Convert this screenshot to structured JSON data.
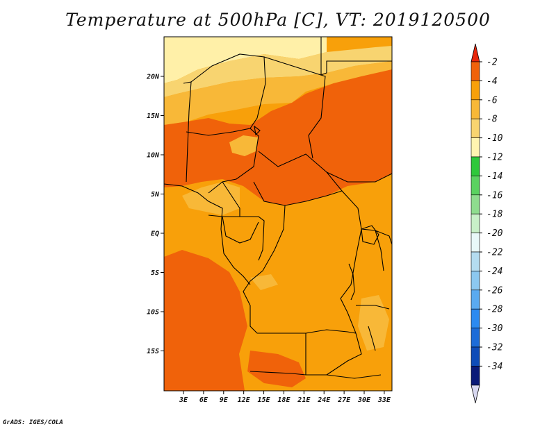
{
  "title": "Temperature at 500hPa [C], VT: 2019120500",
  "credit": "GrADS: IGES/COLA",
  "map": {
    "lat_labels": [
      {
        "label": "20N",
        "lat": 20
      },
      {
        "label": "15N",
        "lat": 15
      },
      {
        "label": "10N",
        "lat": 10
      },
      {
        "label": "5N",
        "lat": 5
      },
      {
        "label": "EQ",
        "lat": 0
      },
      {
        "label": "5S",
        "lat": -5
      },
      {
        "label": "10S",
        "lat": -10
      },
      {
        "label": "15S",
        "lat": -15
      }
    ],
    "lon_labels": [
      {
        "label": "3E",
        "lon": 3
      },
      {
        "label": "6E",
        "lon": 6
      },
      {
        "label": "9E",
        "lon": 9
      },
      {
        "label": "12E",
        "lon": 12
      },
      {
        "label": "15E",
        "lon": 15
      },
      {
        "label": "18E",
        "lon": 18
      },
      {
        "label": "21E",
        "lon": 21
      },
      {
        "label": "24E",
        "lon": 24
      },
      {
        "label": "27E",
        "lon": 27
      },
      {
        "label": "30E",
        "lon": 30
      },
      {
        "label": "33E",
        "lon": 33
      }
    ]
  },
  "colorbar": {
    "labels": [
      "-2",
      "-4",
      "-6",
      "-8",
      "-10",
      "-12",
      "-14",
      "-16",
      "-18",
      "-20",
      "-22",
      "-24",
      "-26",
      "-28",
      "-30",
      "-32",
      "-34"
    ],
    "top_color": "#e8260a",
    "bottom_color": "#d8d8f0",
    "colors": [
      "#f0620a",
      "#f8a00a",
      "#f8b838",
      "#f8d470",
      "#fff4b0",
      "#2ec83a",
      "#5ad260",
      "#8edc8e",
      "#c8f0c8",
      "#e8f8f8",
      "#b4dcf0",
      "#8cc8f0",
      "#5aaaf0",
      "#2c8af0",
      "#1c6cd8",
      "#0e4cb8",
      "#0a1a78"
    ]
  },
  "palette": {
    "yellow_light": "#fff0a8",
    "yellow": "#f8d470",
    "orange_light": "#f8b838",
    "orange": "#f8a00a",
    "orange_dark": "#f0620a",
    "outline": "#000000"
  }
}
